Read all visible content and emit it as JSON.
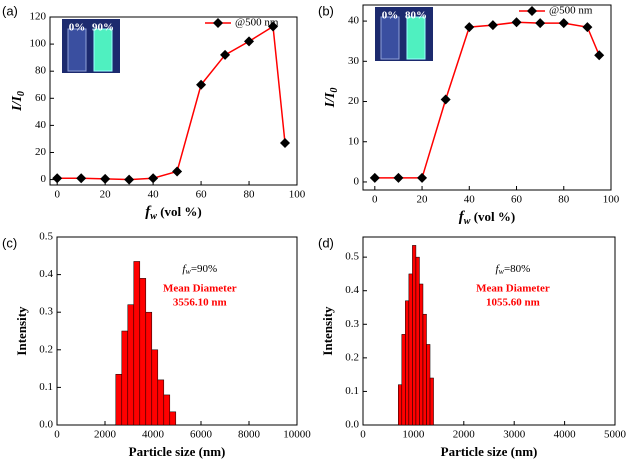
{
  "chart_data": [
    {
      "type": "line",
      "panel_label": "(a)",
      "x": [
        0,
        10,
        20,
        30,
        40,
        50,
        60,
        70,
        80,
        90,
        95
      ],
      "series": [
        {
          "name": "@500 nm",
          "color": "#ff0000",
          "marker_color": "#000000",
          "values": [
            1,
            1,
            0.5,
            0,
            1,
            6,
            70,
            92,
            102,
            113,
            27
          ]
        }
      ],
      "x_label": [
        "f",
        "w",
        " (vol %)"
      ],
      "y_label": [
        "I/I",
        "0"
      ],
      "xlim": [
        -3,
        100
      ],
      "ylim": [
        -4,
        120
      ],
      "xticks": [
        0,
        20,
        40,
        60,
        80,
        100
      ],
      "yticks": [
        0,
        20,
        40,
        60,
        80,
        100,
        120
      ],
      "inset_labels": [
        "0%",
        "90%"
      ],
      "legend": "upper right"
    },
    {
      "type": "line",
      "panel_label": "(b)",
      "x": [
        0,
        10,
        20,
        30,
        40,
        50,
        60,
        70,
        80,
        90,
        95
      ],
      "series": [
        {
          "name": "@500 nm",
          "color": "#ff0000",
          "marker_color": "#000000",
          "values": [
            1,
            1,
            1,
            20.5,
            38.5,
            39,
            39.7,
            39.5,
            39.5,
            38.5,
            31.5
          ]
        }
      ],
      "x_label": [
        "f",
        "w",
        " (vol %)"
      ],
      "y_label": [
        "I/I",
        "0"
      ],
      "xlim": [
        -5,
        100
      ],
      "ylim": [
        -2,
        44
      ],
      "xticks": [
        0,
        20,
        40,
        60,
        80,
        100
      ],
      "yticks": [
        0,
        10,
        20,
        30,
        40
      ],
      "inset_labels": [
        "0%",
        "80%"
      ],
      "legend": "upper right"
    },
    {
      "type": "histogram",
      "panel_label": "(c)",
      "bins": [
        2450,
        2700,
        2950,
        3200,
        3450,
        3700,
        3950,
        4200,
        4450,
        4700,
        4950
      ],
      "values": [
        0.135,
        0.25,
        0.32,
        0.435,
        0.39,
        0.3,
        0.2,
        0.12,
        0.08,
        0.035
      ],
      "color": "#ff0000",
      "x_label": "Particle size (nm)",
      "y_label": "Intensity",
      "xlim": [
        0,
        10000
      ],
      "ylim": [
        0,
        0.5
      ],
      "xticks": [
        0,
        2000,
        4000,
        6000,
        8000,
        10000
      ],
      "yticks": [
        {
          "value": 0,
          "label": "0.0"
        },
        0.1,
        0.2,
        0.3,
        0.4,
        0.5
      ],
      "fw_label": [
        "f",
        "w",
        "=90%"
      ],
      "mean_label": "Mean Diameter",
      "mean_value": "3556.10 nm"
    },
    {
      "type": "histogram",
      "panel_label": "(d)",
      "bins": [
        700,
        770,
        840,
        910,
        980,
        1050,
        1120,
        1190,
        1260,
        1330,
        1400
      ],
      "values": [
        0.12,
        0.27,
        0.37,
        0.45,
        0.535,
        0.5,
        0.42,
        0.33,
        0.24,
        0.14
      ],
      "color": "#ff0000",
      "x_label": "Particle size (nm)",
      "y_label": "Intensity",
      "xlim": [
        0,
        5000
      ],
      "ylim": [
        0,
        0.56
      ],
      "xticks": [
        0,
        1000,
        2000,
        3000,
        4000,
        5000
      ],
      "yticks": [
        {
          "value": 0,
          "label": "0.0"
        },
        0.1,
        0.2,
        0.3,
        0.4,
        0.5
      ],
      "fw_label": [
        "f",
        "w",
        "=80%"
      ],
      "mean_label": "Mean Diameter",
      "mean_value": "1055.60 nm"
    }
  ]
}
